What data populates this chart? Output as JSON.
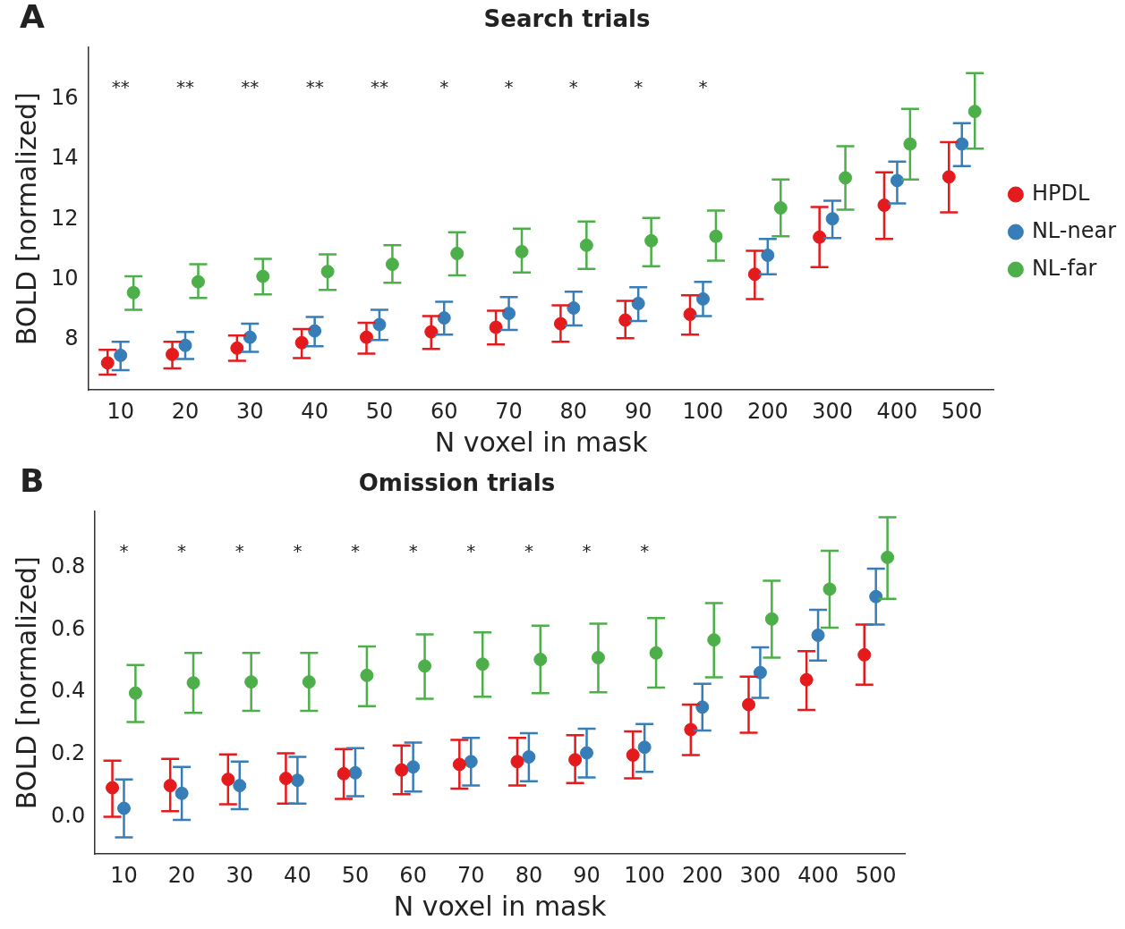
{
  "chart_data": [
    {
      "type": "scatter",
      "title": "Search trials",
      "xlabel": "N voxel in mask",
      "ylabel": "BOLD [normalized]",
      "categories": [
        "10",
        "20",
        "30",
        "40",
        "50",
        "60",
        "70",
        "80",
        "90",
        "100",
        "200",
        "300",
        "400",
        "500"
      ],
      "ylim": [
        6.34,
        17.7
      ],
      "yticks": [
        8,
        10,
        12,
        14,
        16
      ],
      "grid": false,
      "legend": "right",
      "marker": "circle",
      "series": [
        {
          "name": "HPDL",
          "color": "#e41a1c",
          "values": [
            7.24,
            7.52,
            7.73,
            7.91,
            8.09,
            8.27,
            8.42,
            8.54,
            8.66,
            8.85,
            10.18,
            11.41,
            12.47,
            13.41
          ],
          "errors": [
            [
              6.85,
              7.67
            ],
            [
              7.06,
              7.94
            ],
            [
              7.31,
              8.15
            ],
            [
              7.4,
              8.36
            ],
            [
              7.55,
              8.57
            ],
            [
              7.7,
              8.79
            ],
            [
              7.85,
              8.97
            ],
            [
              7.94,
              9.15
            ],
            [
              8.06,
              9.3
            ],
            [
              8.18,
              9.48
            ],
            [
              9.36,
              10.96
            ],
            [
              10.42,
              12.41
            ],
            [
              11.35,
              13.56
            ],
            [
              12.23,
              14.56
            ]
          ]
        },
        {
          "name": "NL-near",
          "color": "#377eb8",
          "values": [
            7.49,
            7.82,
            8.09,
            8.3,
            8.51,
            8.73,
            8.88,
            9.06,
            9.21,
            9.36,
            10.81,
            12.02,
            13.29,
            14.5
          ],
          "errors": [
            [
              7.0,
              7.94
            ],
            [
              7.37,
              8.27
            ],
            [
              7.61,
              8.54
            ],
            [
              7.79,
              8.76
            ],
            [
              8.0,
              9.0
            ],
            [
              8.18,
              9.27
            ],
            [
              8.33,
              9.42
            ],
            [
              8.48,
              9.6
            ],
            [
              8.63,
              9.75
            ],
            [
              8.79,
              9.93
            ],
            [
              10.18,
              11.35
            ],
            [
              11.38,
              12.62
            ],
            [
              12.53,
              13.92
            ],
            [
              13.77,
              15.19
            ]
          ]
        },
        {
          "name": "NL-far",
          "color": "#4daf4a",
          "values": [
            9.57,
            9.93,
            10.11,
            10.27,
            10.51,
            10.87,
            10.93,
            11.14,
            11.29,
            11.44,
            12.38,
            13.38,
            14.5,
            15.58
          ],
          "errors": [
            [
              9.0,
              10.11
            ],
            [
              9.39,
              10.51
            ],
            [
              9.51,
              10.69
            ],
            [
              9.66,
              10.84
            ],
            [
              9.9,
              11.14
            ],
            [
              10.14,
              11.57
            ],
            [
              10.24,
              11.69
            ],
            [
              10.36,
              11.93
            ],
            [
              10.45,
              12.05
            ],
            [
              10.63,
              12.29
            ],
            [
              11.44,
              13.32
            ],
            [
              12.32,
              14.43
            ],
            [
              13.32,
              15.67
            ],
            [
              14.35,
              16.85
            ]
          ]
        }
      ],
      "annotations": [
        "A",
        "**",
        "**",
        "**",
        "**",
        "**",
        "*",
        "*",
        "*",
        "*",
        "*"
      ]
    },
    {
      "type": "scatter",
      "title": "Omission trials",
      "xlabel": "N voxel in mask",
      "ylabel": "BOLD [normalized]",
      "categories": [
        "10",
        "20",
        "30",
        "40",
        "50",
        "60",
        "70",
        "80",
        "90",
        "100",
        "200",
        "300",
        "400",
        "500"
      ],
      "ylim": [
        -0.12,
        0.98
      ],
      "yticks": [
        {
          "value": 0,
          "label": "0.0"
        },
        0.2,
        0.4,
        0.6,
        0.8
      ],
      "grid": false,
      "marker": "circle",
      "series": [
        {
          "color": "#e41a1c",
          "values": [
            0.093,
            0.1,
            0.12,
            0.123,
            0.138,
            0.15,
            0.168,
            0.177,
            0.183,
            0.198,
            0.28,
            0.36,
            0.44,
            0.52
          ],
          "errors": [
            [
              0.0,
              0.18
            ],
            [
              0.018,
              0.186
            ],
            [
              0.04,
              0.2
            ],
            [
              0.042,
              0.204
            ],
            [
              0.057,
              0.217
            ],
            [
              0.072,
              0.229
            ],
            [
              0.09,
              0.247
            ],
            [
              0.1,
              0.253
            ],
            [
              0.108,
              0.262
            ],
            [
              0.123,
              0.274
            ],
            [
              0.198,
              0.36
            ],
            [
              0.27,
              0.45
            ],
            [
              0.343,
              0.532
            ],
            [
              0.424,
              0.617
            ]
          ]
        },
        {
          "color": "#377eb8",
          "values": [
            0.027,
            0.075,
            0.1,
            0.117,
            0.141,
            0.16,
            0.177,
            0.192,
            0.205,
            0.223,
            0.352,
            0.463,
            0.583,
            0.707
          ],
          "errors": [
            [
              -0.066,
              0.12
            ],
            [
              -0.01,
              0.16
            ],
            [
              0.024,
              0.177
            ],
            [
              0.042,
              0.192
            ],
            [
              0.066,
              0.22
            ],
            [
              0.081,
              0.238
            ],
            [
              0.1,
              0.253
            ],
            [
              0.114,
              0.268
            ],
            [
              0.126,
              0.283
            ],
            [
              0.144,
              0.298
            ],
            [
              0.277,
              0.427
            ],
            [
              0.382,
              0.544
            ],
            [
              0.502,
              0.665
            ],
            [
              0.617,
              0.797
            ]
          ]
        },
        {
          "color": "#4daf4a",
          "values": [
            0.397,
            0.43,
            0.433,
            0.433,
            0.454,
            0.484,
            0.49,
            0.505,
            0.511,
            0.526,
            0.568,
            0.635,
            0.731,
            0.833
          ],
          "errors": [
            [
              0.304,
              0.487
            ],
            [
              0.334,
              0.526
            ],
            [
              0.34,
              0.526
            ],
            [
              0.34,
              0.526
            ],
            [
              0.355,
              0.547
            ],
            [
              0.379,
              0.586
            ],
            [
              0.385,
              0.592
            ],
            [
              0.397,
              0.614
            ],
            [
              0.4,
              0.62
            ],
            [
              0.415,
              0.638
            ],
            [
              0.448,
              0.686
            ],
            [
              0.511,
              0.758
            ],
            [
              0.607,
              0.854
            ],
            [
              0.7,
              0.962
            ]
          ]
        }
      ],
      "annotations": [
        "B",
        "*",
        "*",
        "*",
        "*",
        "*",
        "*",
        "*",
        "*",
        "*",
        "*"
      ]
    }
  ]
}
